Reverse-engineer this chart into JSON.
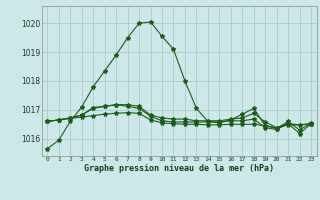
{
  "title": "Graphe pression niveau de la mer (hPa)",
  "bg_color": "#cce8e8",
  "grid_color": "#aacece",
  "line_color": "#1a5c1a",
  "xlim": [
    -0.5,
    23.5
  ],
  "ylim": [
    1015.4,
    1020.6
  ],
  "yticks": [
    1016,
    1017,
    1018,
    1019,
    1020
  ],
  "xtick_labels": [
    "0",
    "1",
    "2",
    "3",
    "4",
    "5",
    "6",
    "7",
    "8",
    "9",
    "10",
    "11",
    "12",
    "13",
    "14",
    "15",
    "16",
    "17",
    "18",
    "19",
    "20",
    "21",
    "22",
    "23"
  ],
  "series": [
    [
      1015.65,
      1015.95,
      1016.6,
      1017.1,
      1017.8,
      1018.35,
      1018.9,
      1019.5,
      1020.0,
      1020.05,
      1019.55,
      1019.1,
      1018.0,
      1017.05,
      1016.6,
      1016.55,
      1016.65,
      1016.85,
      1017.05,
      1016.45,
      1016.35,
      1016.6,
      1016.3,
      1016.55
    ],
    [
      1016.6,
      1016.65,
      1016.7,
      1016.75,
      1016.8,
      1016.85,
      1016.88,
      1016.9,
      1016.88,
      1016.65,
      1016.55,
      1016.52,
      1016.5,
      1016.5,
      1016.48,
      1016.48,
      1016.5,
      1016.5,
      1016.5,
      1016.45,
      1016.38,
      1016.48,
      1016.48,
      1016.52
    ],
    [
      1016.6,
      1016.65,
      1016.72,
      1016.82,
      1017.05,
      1017.12,
      1017.18,
      1017.12,
      1017.05,
      1016.78,
      1016.62,
      1016.58,
      1016.58,
      1016.58,
      1016.58,
      1016.58,
      1016.62,
      1016.62,
      1016.68,
      1016.38,
      1016.32,
      1016.52,
      1016.18,
      1016.52
    ],
    [
      1016.6,
      1016.65,
      1016.72,
      1016.82,
      1017.08,
      1017.12,
      1017.18,
      1017.18,
      1017.12,
      1016.82,
      1016.72,
      1016.68,
      1016.68,
      1016.62,
      1016.62,
      1016.62,
      1016.68,
      1016.72,
      1016.88,
      1016.58,
      1016.38,
      1016.52,
      1016.48,
      1016.52
    ]
  ]
}
